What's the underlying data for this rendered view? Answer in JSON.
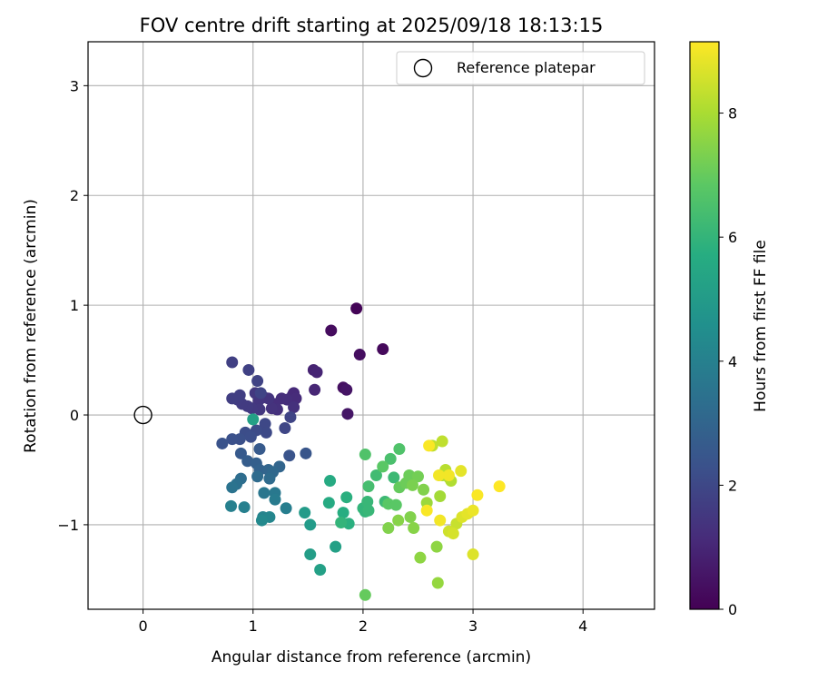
{
  "chart_data": {
    "type": "scatter",
    "title": "FOV centre drift starting at 2025/09/18 18:13:15",
    "xlabel": "Angular distance from reference (arcmin)",
    "ylabel": "Rotation from reference (arcmin)",
    "xlim": [
      -0.5,
      4.65
    ],
    "ylim": [
      -1.77,
      3.4
    ],
    "xticks": [
      0,
      1,
      2,
      3,
      4
    ],
    "yticks": [
      -1,
      0,
      1,
      2,
      3
    ],
    "grid": true,
    "legend": {
      "placement": "top-right",
      "entries": [
        "Reference platepar"
      ]
    },
    "reference_point": {
      "name": "Reference platepar",
      "x": 0,
      "y": 0
    },
    "colorbar": {
      "label": "Hours from first FF file",
      "colormap": "viridis",
      "range": [
        0,
        9.15
      ],
      "ticks": [
        0,
        2,
        4,
        6,
        8
      ]
    },
    "series": [
      {
        "points": [
          {
            "x": 1.94,
            "y": 0.97,
            "t": 0.1
          },
          {
            "x": 2.18,
            "y": 0.6,
            "t": 0.2
          },
          {
            "x": 1.71,
            "y": 0.77,
            "t": 0.3
          },
          {
            "x": 1.97,
            "y": 0.55,
            "t": 0.35
          },
          {
            "x": 1.82,
            "y": 0.25,
            "t": 0.4
          },
          {
            "x": 1.85,
            "y": 0.23,
            "t": 0.5
          },
          {
            "x": 1.86,
            "y": 0.01,
            "t": 0.55
          },
          {
            "x": 1.55,
            "y": 0.41,
            "t": 0.9
          },
          {
            "x": 1.58,
            "y": 0.39,
            "t": 0.95
          },
          {
            "x": 1.56,
            "y": 0.23,
            "t": 1.0
          },
          {
            "x": 1.37,
            "y": 0.2,
            "t": 1.1
          },
          {
            "x": 1.36,
            "y": 0.18,
            "t": 1.1
          },
          {
            "x": 1.39,
            "y": 0.15,
            "t": 1.15
          },
          {
            "x": 1.31,
            "y": 0.14,
            "t": 1.2
          },
          {
            "x": 1.26,
            "y": 0.15,
            "t": 1.2
          },
          {
            "x": 1.2,
            "y": 0.1,
            "t": 1.25
          },
          {
            "x": 1.37,
            "y": 0.07,
            "t": 1.3
          },
          {
            "x": 1.22,
            "y": 0.05,
            "t": 1.3
          },
          {
            "x": 1.17,
            "y": 0.06,
            "t": 1.35
          },
          {
            "x": 1.14,
            "y": 0.15,
            "t": 1.4
          },
          {
            "x": 1.1,
            "y": 0.16,
            "t": 1.4
          },
          {
            "x": 1.05,
            "y": 0.13,
            "t": 1.45
          },
          {
            "x": 1.02,
            "y": 0.2,
            "t": 1.5
          },
          {
            "x": 1.06,
            "y": 0.05,
            "t": 1.5
          },
          {
            "x": 0.99,
            "y": 0.06,
            "t": 1.55
          },
          {
            "x": 0.95,
            "y": 0.08,
            "t": 1.6
          },
          {
            "x": 0.9,
            "y": 0.1,
            "t": 1.6
          },
          {
            "x": 0.86,
            "y": 0.14,
            "t": 1.65
          },
          {
            "x": 0.88,
            "y": 0.18,
            "t": 1.7
          },
          {
            "x": 0.81,
            "y": 0.15,
            "t": 1.7
          },
          {
            "x": 0.81,
            "y": 0.48,
            "t": 1.75
          },
          {
            "x": 0.96,
            "y": 0.41,
            "t": 1.8
          },
          {
            "x": 1.04,
            "y": 0.31,
            "t": 1.85
          },
          {
            "x": 1.07,
            "y": 0.2,
            "t": 1.9
          },
          {
            "x": 1.34,
            "y": -0.02,
            "t": 1.9
          },
          {
            "x": 1.29,
            "y": -0.12,
            "t": 1.95
          },
          {
            "x": 1.11,
            "y": -0.08,
            "t": 2.0
          },
          {
            "x": 1.12,
            "y": -0.16,
            "t": 2.05
          },
          {
            "x": 1.03,
            "y": -0.14,
            "t": 2.1
          },
          {
            "x": 0.93,
            "y": -0.16,
            "t": 2.15
          },
          {
            "x": 0.98,
            "y": -0.2,
            "t": 2.2
          },
          {
            "x": 0.88,
            "y": -0.22,
            "t": 2.25
          },
          {
            "x": 0.81,
            "y": -0.22,
            "t": 2.3
          },
          {
            "x": 0.72,
            "y": -0.26,
            "t": 2.35
          },
          {
            "x": 1.33,
            "y": -0.37,
            "t": 2.4
          },
          {
            "x": 1.48,
            "y": -0.35,
            "t": 2.45
          },
          {
            "x": 1.06,
            "y": -0.31,
            "t": 2.6
          },
          {
            "x": 0.89,
            "y": -0.35,
            "t": 2.6
          },
          {
            "x": 0.95,
            "y": -0.42,
            "t": 2.7
          },
          {
            "x": 1.03,
            "y": -0.44,
            "t": 2.8
          },
          {
            "x": 1.06,
            "y": -0.5,
            "t": 2.9
          },
          {
            "x": 1.14,
            "y": -0.5,
            "t": 3.0
          },
          {
            "x": 1.24,
            "y": -0.47,
            "t": 3.0
          },
          {
            "x": 1.18,
            "y": -0.52,
            "t": 3.1
          },
          {
            "x": 1.15,
            "y": -0.58,
            "t": 3.2
          },
          {
            "x": 1.04,
            "y": -0.56,
            "t": 3.2
          },
          {
            "x": 0.89,
            "y": -0.58,
            "t": 3.3
          },
          {
            "x": 0.85,
            "y": -0.63,
            "t": 3.4
          },
          {
            "x": 0.81,
            "y": -0.66,
            "t": 3.5
          },
          {
            "x": 1.1,
            "y": -0.71,
            "t": 3.6
          },
          {
            "x": 1.2,
            "y": -0.71,
            "t": 3.7
          },
          {
            "x": 1.2,
            "y": -0.77,
            "t": 3.8
          },
          {
            "x": 1.3,
            "y": -0.85,
            "t": 3.9
          },
          {
            "x": 0.8,
            "y": -0.83,
            "t": 4.0
          },
          {
            "x": 0.92,
            "y": -0.84,
            "t": 4.0
          },
          {
            "x": 1.09,
            "y": -0.93,
            "t": 4.1
          },
          {
            "x": 1.15,
            "y": -0.93,
            "t": 4.2
          },
          {
            "x": 1.08,
            "y": -0.96,
            "t": 4.3
          },
          {
            "x": 1.0,
            "y": -0.04,
            "t": 5.2
          },
          {
            "x": 1.47,
            "y": -0.89,
            "t": 5.0
          },
          {
            "x": 1.52,
            "y": -1.0,
            "t": 5.0
          },
          {
            "x": 1.52,
            "y": -1.27,
            "t": 5.1
          },
          {
            "x": 1.61,
            "y": -1.41,
            "t": 5.2
          },
          {
            "x": 1.75,
            "y": -1.2,
            "t": 5.2
          },
          {
            "x": 1.7,
            "y": -0.6,
            "t": 5.6
          },
          {
            "x": 1.69,
            "y": -0.8,
            "t": 5.6
          },
          {
            "x": 1.82,
            "y": -0.89,
            "t": 5.7
          },
          {
            "x": 1.85,
            "y": -0.75,
            "t": 5.8
          },
          {
            "x": 1.8,
            "y": -0.98,
            "t": 6.0
          },
          {
            "x": 1.87,
            "y": -0.99,
            "t": 5.8
          },
          {
            "x": 2.0,
            "y": -0.85,
            "t": 6.0
          },
          {
            "x": 2.02,
            "y": -0.88,
            "t": 6.0
          },
          {
            "x": 2.04,
            "y": -0.79,
            "t": 6.1
          },
          {
            "x": 2.05,
            "y": -0.87,
            "t": 6.1
          },
          {
            "x": 2.2,
            "y": -0.79,
            "t": 6.2
          },
          {
            "x": 2.28,
            "y": -0.57,
            "t": 6.2
          },
          {
            "x": 2.12,
            "y": -0.55,
            "t": 6.3
          },
          {
            "x": 2.05,
            "y": -0.65,
            "t": 6.4
          },
          {
            "x": 2.02,
            "y": -0.36,
            "t": 6.6
          },
          {
            "x": 2.25,
            "y": -0.4,
            "t": 6.5
          },
          {
            "x": 2.33,
            "y": -0.31,
            "t": 6.6
          },
          {
            "x": 2.18,
            "y": -0.47,
            "t": 6.8
          },
          {
            "x": 2.23,
            "y": -0.81,
            "t": 6.8
          },
          {
            "x": 2.3,
            "y": -0.82,
            "t": 6.8
          },
          {
            "x": 2.33,
            "y": -0.66,
            "t": 7.0
          },
          {
            "x": 2.39,
            "y": -0.62,
            "t": 7.1
          },
          {
            "x": 2.42,
            "y": -0.55,
            "t": 7.1
          },
          {
            "x": 2.5,
            "y": -0.56,
            "t": 7.2
          },
          {
            "x": 2.45,
            "y": -0.64,
            "t": 7.3
          },
          {
            "x": 2.55,
            "y": -0.68,
            "t": 7.4
          },
          {
            "x": 2.43,
            "y": -0.93,
            "t": 7.4
          },
          {
            "x": 2.32,
            "y": -0.96,
            "t": 7.5
          },
          {
            "x": 2.46,
            "y": -1.03,
            "t": 7.5
          },
          {
            "x": 2.23,
            "y": -1.03,
            "t": 7.4
          },
          {
            "x": 2.52,
            "y": -1.3,
            "t": 7.6
          },
          {
            "x": 2.67,
            "y": -1.2,
            "t": 7.6
          },
          {
            "x": 2.68,
            "y": -1.53,
            "t": 7.7
          },
          {
            "x": 2.02,
            "y": -1.64,
            "t": 7.0
          },
          {
            "x": 2.58,
            "y": -0.8,
            "t": 7.8
          },
          {
            "x": 2.7,
            "y": -0.74,
            "t": 7.9
          },
          {
            "x": 2.72,
            "y": -0.55,
            "t": 8.0
          },
          {
            "x": 2.78,
            "y": -0.57,
            "t": 8.1
          },
          {
            "x": 2.8,
            "y": -0.6,
            "t": 8.1
          },
          {
            "x": 2.75,
            "y": -0.5,
            "t": 8.2
          },
          {
            "x": 2.72,
            "y": -0.24,
            "t": 8.3
          },
          {
            "x": 2.63,
            "y": -0.28,
            "t": 8.3
          },
          {
            "x": 2.85,
            "y": -0.99,
            "t": 8.4
          },
          {
            "x": 2.78,
            "y": -1.06,
            "t": 8.5
          },
          {
            "x": 2.82,
            "y": -1.08,
            "t": 8.6
          },
          {
            "x": 3.0,
            "y": -1.27,
            "t": 8.7
          },
          {
            "x": 2.9,
            "y": -0.93,
            "t": 8.7
          },
          {
            "x": 2.95,
            "y": -0.9,
            "t": 8.8
          },
          {
            "x": 3.0,
            "y": -0.87,
            "t": 8.9
          },
          {
            "x": 2.89,
            "y": -0.51,
            "t": 8.8
          },
          {
            "x": 2.78,
            "y": -0.55,
            "t": 9.0
          },
          {
            "x": 2.69,
            "y": -0.55,
            "t": 9.0
          },
          {
            "x": 2.6,
            "y": -0.28,
            "t": 9.1
          },
          {
            "x": 2.58,
            "y": -0.87,
            "t": 9.1
          },
          {
            "x": 2.7,
            "y": -0.96,
            "t": 9.0
          },
          {
            "x": 3.04,
            "y": -0.73,
            "t": 9.1
          },
          {
            "x": 3.24,
            "y": -0.65,
            "t": 9.15
          }
        ]
      }
    ]
  }
}
